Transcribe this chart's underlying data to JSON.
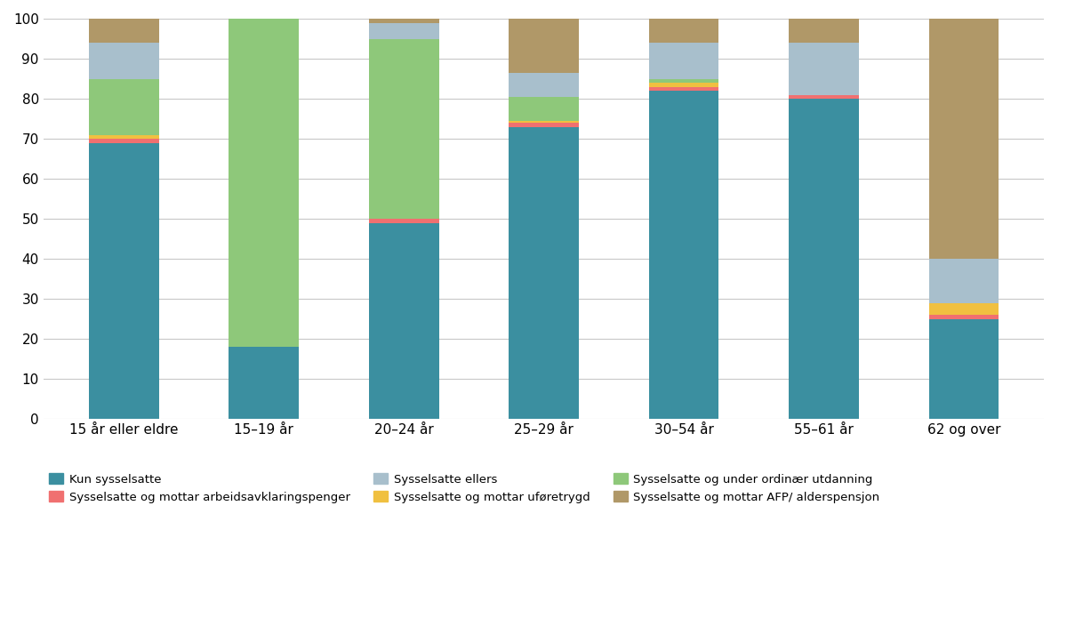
{
  "categories": [
    "15 år eller eldre",
    "15–19 år",
    "20–24 år",
    "25–29 år",
    "30–54 år",
    "55–61 år",
    "62 og over"
  ],
  "series": [
    {
      "label": "Kun sysselsatte",
      "color": "#3b8fa0",
      "values": [
        69,
        18,
        49,
        73,
        82,
        80,
        25
      ]
    },
    {
      "label": "Sysselsatte og mottar arbeidsavklaringspenger",
      "color": "#f07070",
      "values": [
        1,
        0,
        1,
        1,
        1,
        1,
        1
      ]
    },
    {
      "label": "Sysselsatte og mottar uføretrygd",
      "color": "#f0c040",
      "values": [
        1,
        0,
        0,
        0.5,
        1,
        0,
        3
      ]
    },
    {
      "label": "Sysselsatte og under ordinær utdanning",
      "color": "#8ec87a",
      "values": [
        14,
        82,
        45,
        6,
        1,
        0,
        0
      ]
    },
    {
      "label": "Sysselsatte ellers",
      "color": "#a8bfcc",
      "values": [
        9,
        0,
        4,
        6,
        9,
        13,
        11
      ]
    },
    {
      "label": "Sysselsatte og mottar AFP/ alderspensjon",
      "color": "#b09868",
      "values": [
        6,
        0,
        1,
        13.5,
        6,
        6,
        60
      ]
    }
  ],
  "ylim": [
    0,
    100
  ],
  "yticks": [
    0,
    10,
    20,
    30,
    40,
    50,
    60,
    70,
    80,
    90,
    100
  ],
  "bar_width": 0.5,
  "figsize": [
    12.0,
    6.95
  ],
  "dpi": 100,
  "grid_color": "#c8c8c8",
  "background_color": "#ffffff",
  "legend_items": [
    {
      "label": "Kun sysselsatte",
      "color": "#3b8fa0"
    },
    {
      "label": "Sysselsatte og mottar arbeidsavklaringspenger",
      "color": "#f07070"
    },
    {
      "label": "Sysselsatte ellers",
      "color": "#a8bfcc"
    },
    {
      "label": "Sysselsatte og mottar uføretrygd",
      "color": "#f0c040"
    },
    {
      "label": "Sysselsatte og under ordinær utdanning",
      "color": "#8ec87a"
    },
    {
      "label": "Sysselsatte og mottar AFP/ alderspensjon",
      "color": "#b09868"
    }
  ]
}
